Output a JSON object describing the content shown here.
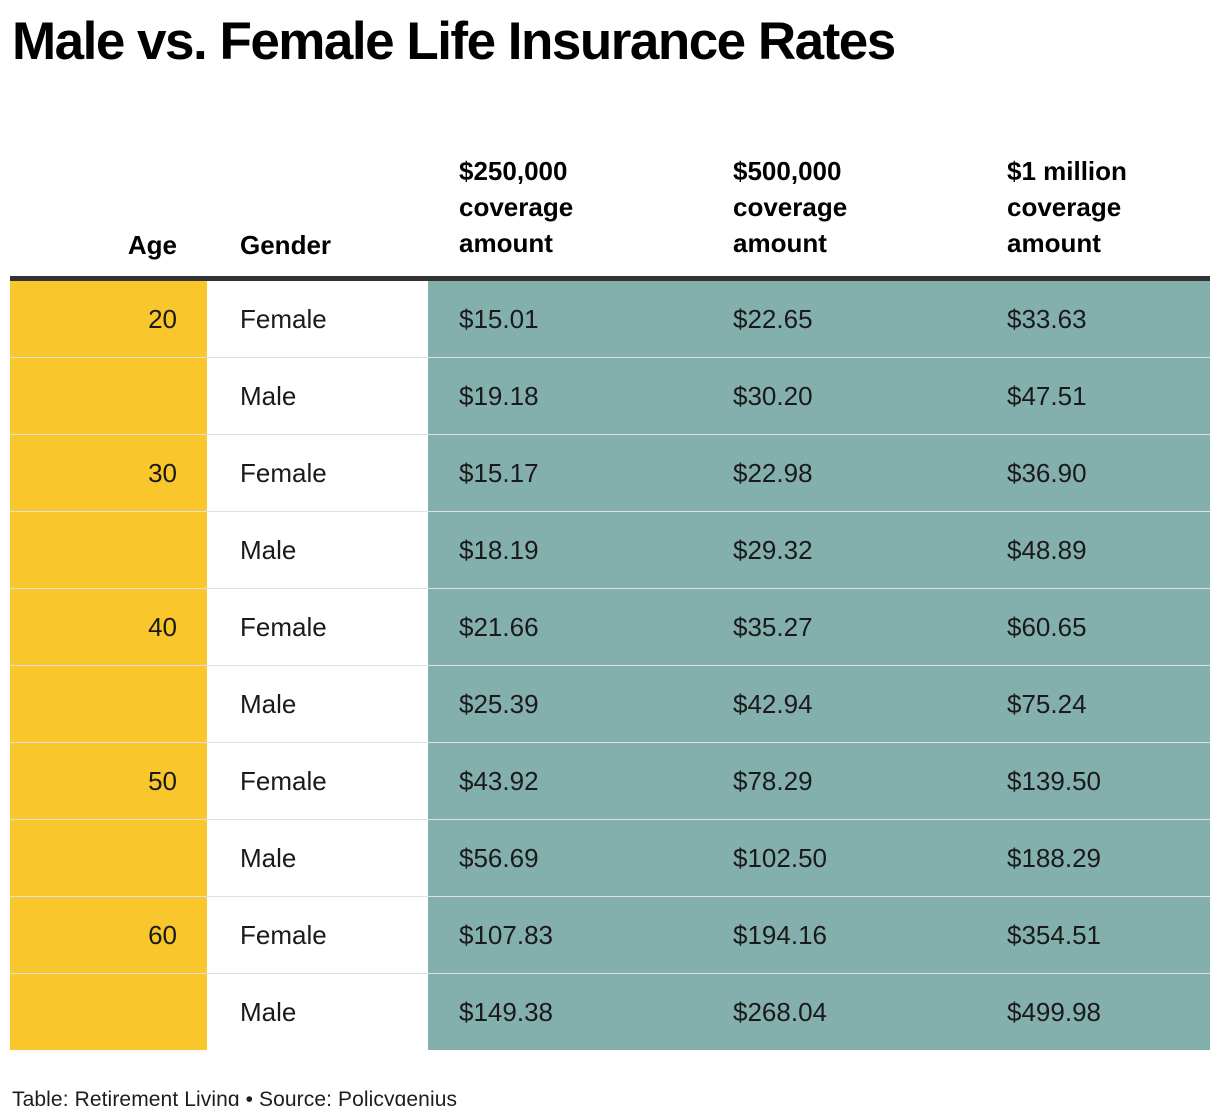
{
  "title": "Male vs. Female Life Insurance Rates",
  "footer": {
    "text": "Table: Retirement Living • Source: Policygenius"
  },
  "colors": {
    "age_column_bg": "#f9c62b",
    "rate_columns_bg": "#83b0ad",
    "header_rule": "#323232",
    "row_divider": "#e0e0e0",
    "text": "#1a1a1a"
  },
  "chart_data": {
    "type": "table",
    "title": "Male vs. Female Life Insurance Rates",
    "columns": [
      {
        "key": "age",
        "label": "Age"
      },
      {
        "key": "gender",
        "label": "Gender"
      },
      {
        "key": "rate_250k",
        "label": "$250,000 coverage amount"
      },
      {
        "key": "rate_500k",
        "label": "$500,000 coverage amount"
      },
      {
        "key": "rate_1m",
        "label": "$1 million coverage amount"
      }
    ],
    "rows": [
      {
        "age": "20",
        "gender": "Female",
        "rate_250k": "$15.01",
        "rate_500k": "$22.65",
        "rate_1m": "$33.63"
      },
      {
        "age": "",
        "gender": "Male",
        "rate_250k": "$19.18",
        "rate_500k": "$30.20",
        "rate_1m": "$47.51"
      },
      {
        "age": "30",
        "gender": "Female",
        "rate_250k": "$15.17",
        "rate_500k": "$22.98",
        "rate_1m": "$36.90"
      },
      {
        "age": "",
        "gender": "Male",
        "rate_250k": "$18.19",
        "rate_500k": "$29.32",
        "rate_1m": "$48.89"
      },
      {
        "age": "40",
        "gender": "Female",
        "rate_250k": "$21.66",
        "rate_500k": "$35.27",
        "rate_1m": "$60.65"
      },
      {
        "age": "",
        "gender": "Male",
        "rate_250k": "$25.39",
        "rate_500k": "$42.94",
        "rate_1m": "$75.24"
      },
      {
        "age": "50",
        "gender": "Female",
        "rate_250k": "$43.92",
        "rate_500k": "$78.29",
        "rate_1m": "$139.50"
      },
      {
        "age": "",
        "gender": "Male",
        "rate_250k": "$56.69",
        "rate_500k": "$102.50",
        "rate_1m": "$188.29"
      },
      {
        "age": "60",
        "gender": "Female",
        "rate_250k": "$107.83",
        "rate_500k": "$194.16",
        "rate_1m": "$354.51"
      },
      {
        "age": "",
        "gender": "Male",
        "rate_250k": "$149.38",
        "rate_500k": "$268.04",
        "rate_1m": "$499.98"
      }
    ]
  }
}
